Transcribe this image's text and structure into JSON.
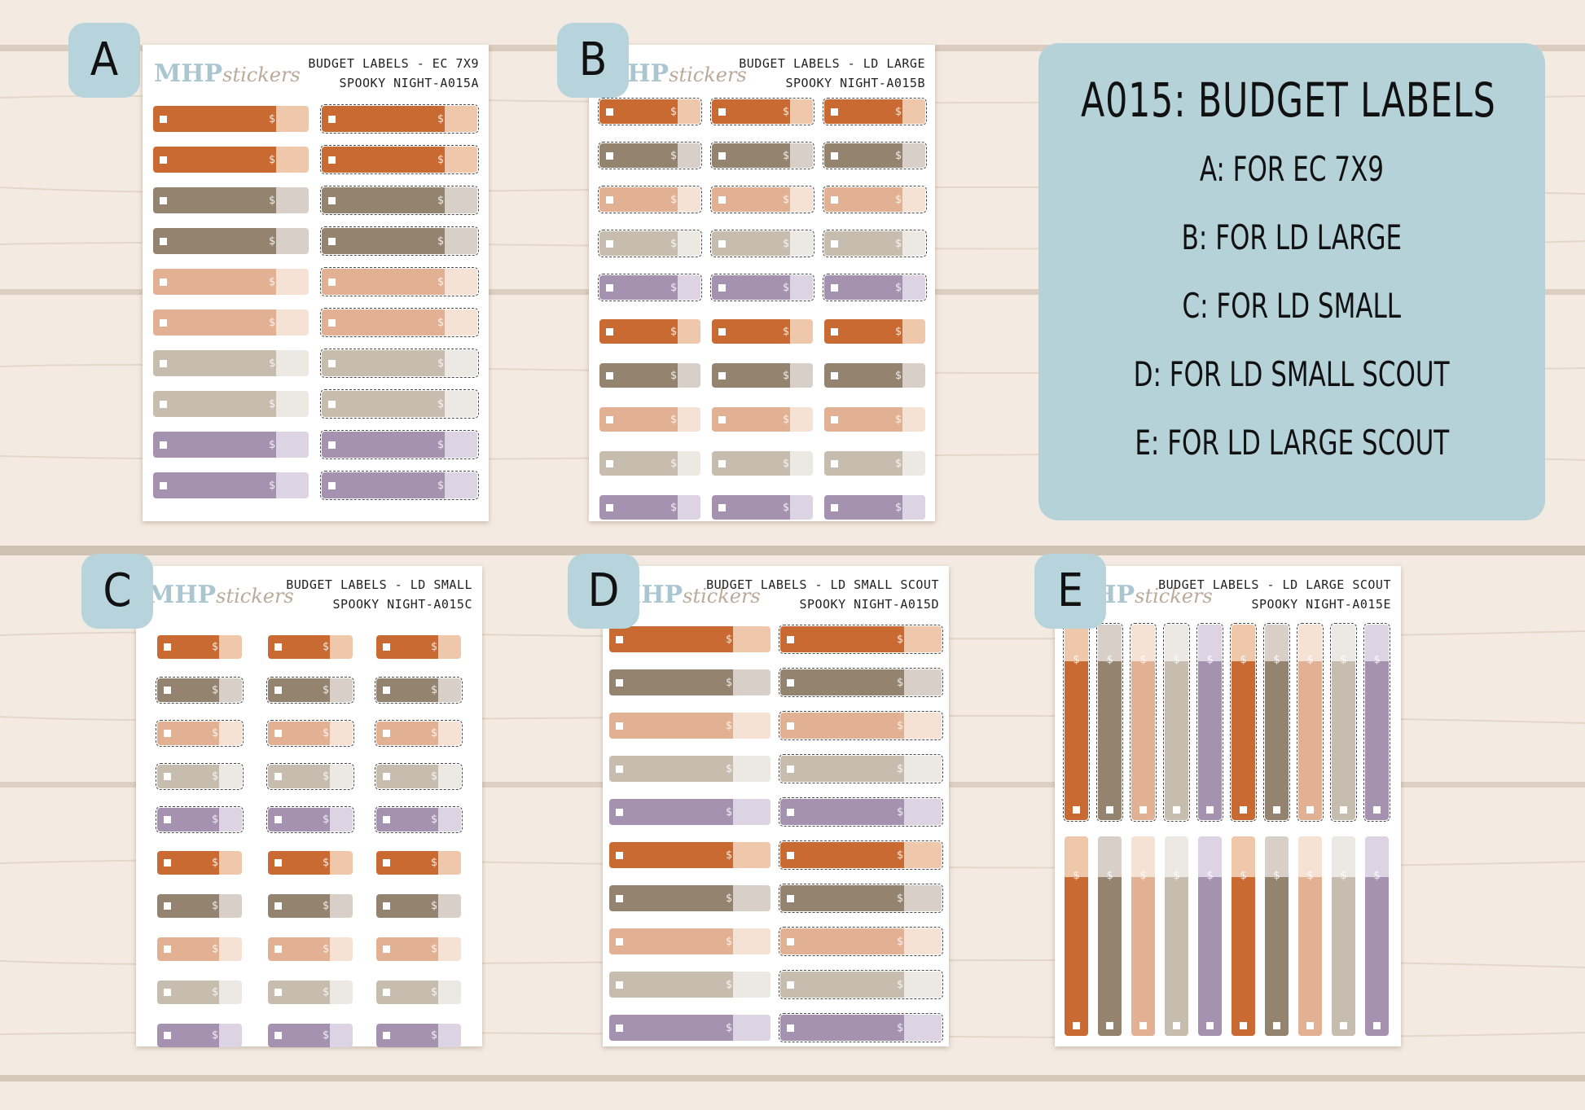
{
  "colors": {
    "background": "#f3ebe2",
    "panel": "#b6d2d9",
    "badge": "#b7d3db",
    "rust": "#c96a33",
    "rust_light": "#efc7ab",
    "taupe": "#93836f",
    "taupe_light": "#d8d0c8",
    "peach": "#e2b092",
    "peach_light": "#f6e2d4",
    "stone": "#c7bdaf",
    "stone_light": "#ece9e4",
    "lavender": "#a592b0",
    "lavender_light": "#ddd4e3"
  },
  "brand": {
    "logo_main": "MHP",
    "logo_script": "stickers"
  },
  "info": {
    "title": "A015: BUDGET LABELS",
    "lines": [
      "A: FOR EC 7X9",
      "B: FOR LD LARGE",
      "C: FOR LD SMALL",
      "D: FOR LD SMALL SCOUT",
      "E: FOR LD LARGE SCOUT"
    ]
  },
  "sheets": [
    {
      "letter": "A",
      "title": "BUDGET LABELS - EC 7X9",
      "subtitle": "SPOOKY NIGHT-A015A"
    },
    {
      "letter": "B",
      "title": "BUDGET LABELS - LD LARGE",
      "subtitle": "SPOOKY NIGHT-A015B"
    },
    {
      "letter": "C",
      "title": "BUDGET LABELS - LD SMALL",
      "subtitle": "SPOOKY NIGHT-A015C"
    },
    {
      "letter": "D",
      "title": "BUDGET LABELS - LD SMALL SCOUT",
      "subtitle": "SPOOKY NIGHT-A015D"
    },
    {
      "letter": "E",
      "title": "BUDGET LABELS - LD LARGE SCOUT",
      "subtitle": "SPOOKY NIGHT-A015E"
    }
  ],
  "icons": {
    "checkbox": "square-box-icon",
    "currency": "dollar-sign-icon"
  },
  "currency_symbol": "$"
}
